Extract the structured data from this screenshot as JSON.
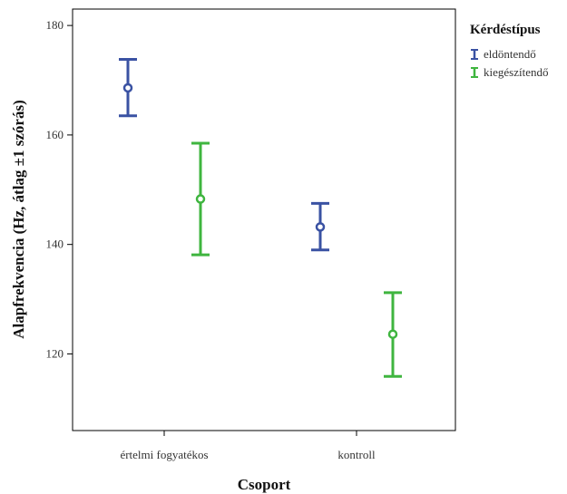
{
  "chart_data": {
    "type": "errorbar",
    "xlabel": "Csoport",
    "ylabel": "Alapfrekvencia (Hz, átlag ±1 szórás)",
    "categories": [
      "értelmi fogyatékos",
      "kontroll"
    ],
    "ylim": [
      106,
      183
    ],
    "yticks": [
      120,
      140,
      160,
      180
    ],
    "grid": false,
    "legend": {
      "title": "Kérdéstípus",
      "position": "right"
    },
    "series": [
      {
        "name": "eldöntendő",
        "color": "#3a52a3",
        "mean": [
          168.6,
          143.2
        ],
        "lower": [
          163.5,
          139.0
        ],
        "upper": [
          173.8,
          147.5
        ]
      },
      {
        "name": "kiegészítendő",
        "color": "#3fb53f",
        "mean": [
          148.3,
          123.6
        ],
        "lower": [
          138.1,
          115.9
        ],
        "upper": [
          158.5,
          131.2
        ]
      }
    ]
  }
}
